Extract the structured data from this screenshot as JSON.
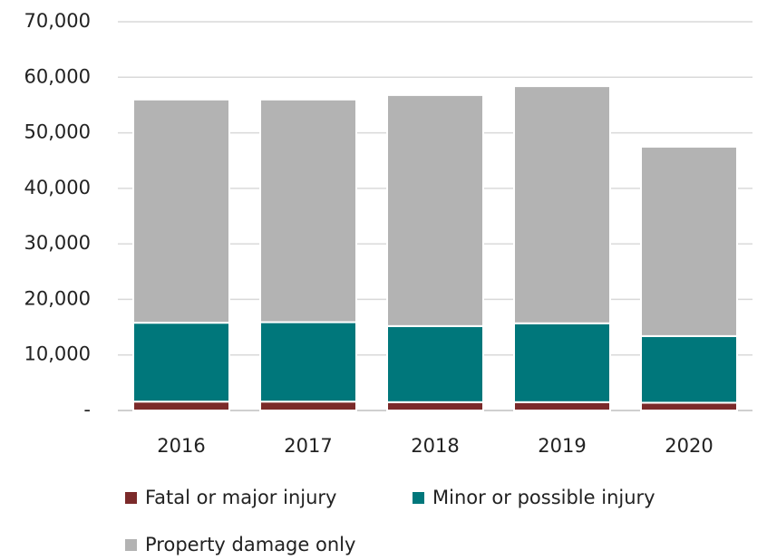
{
  "chart_data": {
    "type": "stacked_bar",
    "categories": [
      "2016",
      "2017",
      "2018",
      "2019",
      "2020"
    ],
    "series": [
      {
        "name": "Fatal or major injury",
        "color": "#7b2a2a",
        "values": [
          1600,
          1600,
          1500,
          1500,
          1400
        ]
      },
      {
        "name": "Minor or possible injury",
        "color": "#00777b",
        "values": [
          14200,
          14300,
          13700,
          14200,
          12000
        ]
      },
      {
        "name": "Property damage only",
        "color": "#b3b3b3",
        "values": [
          40200,
          40100,
          41600,
          42700,
          34100
        ]
      }
    ],
    "ylim": [
      0,
      70000
    ],
    "yticks": [
      {
        "value": 0,
        "label": "-"
      },
      {
        "value": 10000,
        "label": "10,000"
      },
      {
        "value": 20000,
        "label": "20,000"
      },
      {
        "value": 30000,
        "label": "30,000"
      },
      {
        "value": 40000,
        "label": "40,000"
      },
      {
        "value": 50000,
        "label": "50,000"
      },
      {
        "value": 60000,
        "label": "60,000"
      },
      {
        "value": 70000,
        "label": "70,000"
      }
    ],
    "grid": true
  }
}
